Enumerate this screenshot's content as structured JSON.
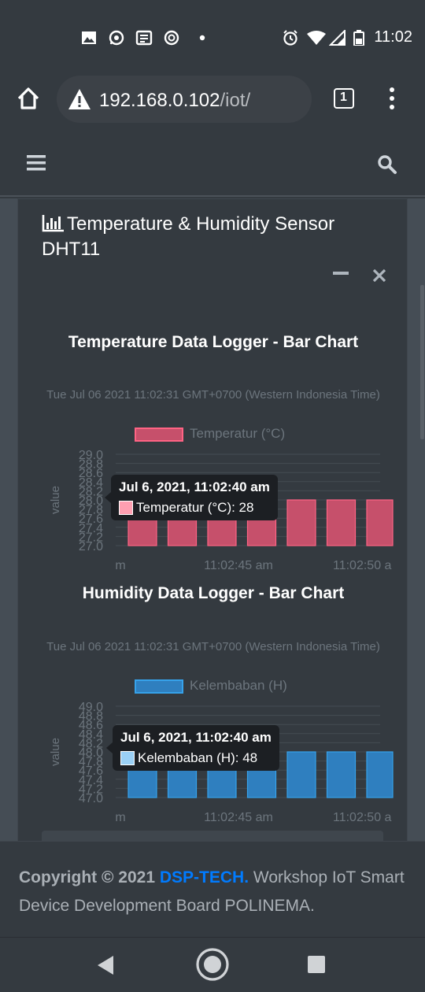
{
  "status_bar": {
    "time": "11:02",
    "notification_icons": [
      "image-icon",
      "whatsapp-icon",
      "news-icon",
      "sync-icon",
      "dot-icon"
    ],
    "system_icons": [
      "alarm-icon",
      "wifi-icon",
      "signal-icon",
      "battery-icon"
    ]
  },
  "browser": {
    "url_host": "192.168.0.102",
    "url_path": "/iot/",
    "tab_count": "1",
    "security_icon": "warning-icon"
  },
  "card": {
    "title": "Temperature & Humidity Sensor DHT11",
    "title_icon": "bar-chart-icon"
  },
  "footer": {
    "copyright_prefix": "Copyright © 2021",
    "brand": "DSP-TECH.",
    "text": "Workshop IoT Smart Device Development Board POLINEMA."
  },
  "colors": {
    "background": "#343a40",
    "accent": "#007bff",
    "temp_bar": "#c6506b",
    "humidity_bar": "#2f7fbf"
  },
  "chart_data": [
    {
      "type": "bar",
      "title": "Temperature Data Logger - Bar Chart",
      "subtitle": "Tue Jul 06 2021 11:02:31 GMT+0700 (Western Indonesia Time)",
      "ylabel": "value",
      "ylim": [
        27.0,
        29.0
      ],
      "yticks": [
        "29.0",
        "28.8",
        "28.6",
        "28.4",
        "28.2",
        "28.0",
        "27.8",
        "27.6",
        "27.4",
        "27.2",
        "27.0"
      ],
      "xtick_labels": [
        "m",
        "11:02:45 am",
        "11:02:50 a"
      ],
      "series": [
        {
          "name": "Temperatur (°C)",
          "values": [
            28,
            28,
            28,
            28,
            28,
            28,
            28
          ]
        }
      ],
      "legend_position": "top",
      "tooltip": {
        "title": "Jul 6, 2021, 11:02:40 am",
        "label": "Temperatur (°C): 28"
      },
      "colors": {
        "fill": "#c6506b",
        "border": "#ff6384",
        "swatch": "#ff9fb1"
      }
    },
    {
      "type": "bar",
      "title": "Humidity Data Logger - Bar Chart",
      "subtitle": "Tue Jul 06 2021 11:02:31 GMT+0700 (Western Indonesia Time)",
      "ylabel": "value",
      "ylim": [
        47.0,
        49.0
      ],
      "yticks": [
        "49.0",
        "48.8",
        "48.6",
        "48.4",
        "48.2",
        "48.0",
        "47.8",
        "47.6",
        "47.4",
        "47.2",
        "47.0"
      ],
      "xtick_labels": [
        "m",
        "11:02:45 am",
        "11:02:50 a"
      ],
      "series": [
        {
          "name": "Kelembaban (H)",
          "values": [
            48,
            48,
            48,
            48,
            48,
            48,
            48
          ]
        }
      ],
      "legend_position": "top",
      "tooltip": {
        "title": "Jul 6, 2021, 11:02:40 am",
        "label": "Kelembaban (H): 48"
      },
      "colors": {
        "fill": "#2f7fbf",
        "border": "#36a2eb",
        "swatch": "#9ad0f5"
      }
    }
  ]
}
